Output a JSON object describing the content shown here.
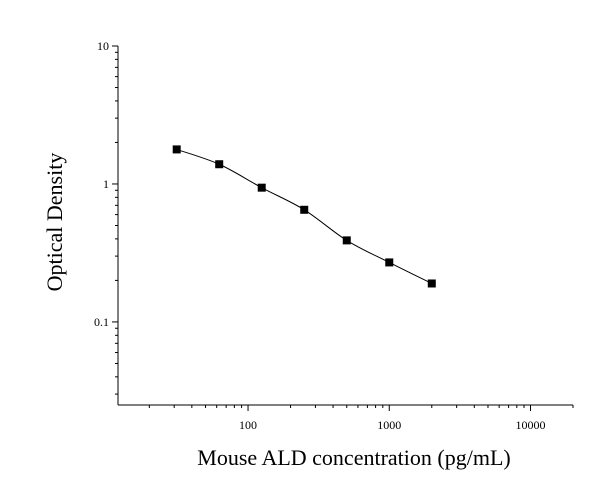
{
  "chart_data": {
    "type": "scatter",
    "xlabel": "Mouse ALD concentration (pg/mL)",
    "ylabel": "Optical Density",
    "xscale": "log",
    "yscale": "log",
    "xlim": [
      12,
      20000
    ],
    "ylim": [
      0.025,
      10
    ],
    "x_ticks": [
      100,
      1000,
      10000
    ],
    "x_tick_labels": [
      "100",
      "1000",
      "10000"
    ],
    "y_ticks": [
      0.1,
      1,
      10
    ],
    "y_tick_labels": [
      "0.1",
      "1",
      "10"
    ],
    "series": [
      {
        "x": [
          31.25,
          62.5,
          125,
          250,
          500,
          1000,
          2000
        ],
        "y": [
          1.78,
          1.39,
          0.94,
          0.65,
          0.39,
          0.27,
          0.19
        ],
        "marker": "square",
        "fit_curve": true
      }
    ],
    "grid": false,
    "colors": {
      "line": "#000000",
      "marker": "#000000"
    }
  }
}
